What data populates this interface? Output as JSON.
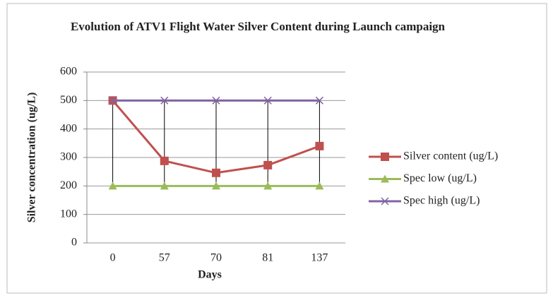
{
  "chart_data": {
    "type": "line",
    "title": "Evolution of ATV1 Flight Water Silver Content during Launch campaign",
    "x_label": "Days",
    "y_label": "Silver concentration (ug/L)",
    "categories": [
      "0",
      "57",
      "70",
      "81",
      "137"
    ],
    "series": [
      {
        "name": "Silver content (ug/L)",
        "color": "#c0504d",
        "marker": "square",
        "values": [
          500,
          288,
          246,
          273,
          340
        ]
      },
      {
        "name": "Spec low (ug/L)",
        "color": "#9bbb59",
        "marker": "triangle",
        "values": [
          200,
          200,
          200,
          200,
          200
        ]
      },
      {
        "name": "Spec high (ug/L)",
        "color": "#8064a2",
        "marker": "x",
        "values": [
          500,
          500,
          500,
          500,
          500
        ]
      }
    ],
    "high_low_lines": true,
    "ylim": [
      0,
      600
    ],
    "yticks": [
      0,
      100,
      200,
      300,
      400,
      500,
      600
    ],
    "grid": true,
    "legend": "right"
  }
}
